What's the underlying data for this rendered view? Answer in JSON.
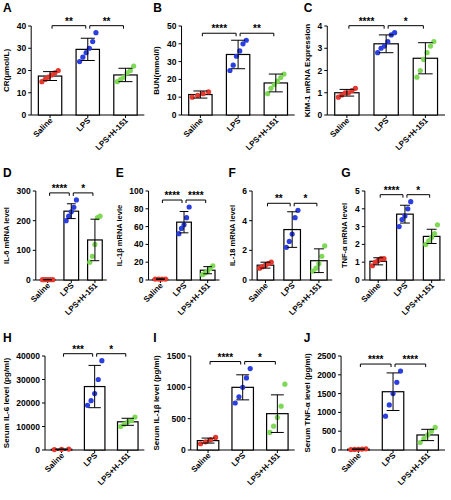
{
  "chart_data": [
    {
      "type": "bar",
      "title": "A",
      "y_label": "CR(μmol/L)",
      "categories": [
        "Saline",
        "LPS",
        "LPS+H-151"
      ],
      "values": [
        17.5,
        29.5,
        18
      ],
      "errors": [
        2,
        5,
        3
      ],
      "points": [
        [
          15,
          16,
          17,
          18,
          19,
          20
        ],
        [
          24,
          26,
          28,
          30,
          33,
          37
        ],
        [
          15,
          16,
          17,
          19,
          20,
          22
        ]
      ],
      "colors": [
        "#e5382e",
        "#2b3fe0",
        "#7fd957"
      ],
      "ylim": [
        0,
        40
      ],
      "yticks": [
        0,
        10,
        20,
        30,
        40
      ],
      "annotations": [
        {
          "text": "**",
          "groups": [
            "Saline",
            "LPS"
          ]
        },
        {
          "text": "**",
          "groups": [
            "LPS",
            "LPS+H-151"
          ]
        }
      ]
    },
    {
      "type": "bar",
      "title": "B",
      "y_label": "BUN(mmol/l)",
      "categories": [
        "Saline",
        "LPS",
        "LPS+H-151"
      ],
      "values": [
        11.5,
        34,
        18
      ],
      "errors": [
        2,
        8,
        5
      ],
      "points": [
        [
          10,
          11,
          12,
          13
        ],
        [
          25,
          28,
          33,
          36,
          40,
          42
        ],
        [
          12,
          15,
          17,
          19,
          21,
          23
        ]
      ],
      "colors": [
        "#e5382e",
        "#2b3fe0",
        "#7fd957"
      ],
      "ylim": [
        0,
        50
      ],
      "yticks": [
        0,
        10,
        20,
        30,
        40,
        50
      ],
      "annotations": [
        {
          "text": "****",
          "groups": [
            "Saline",
            "LPS"
          ]
        },
        {
          "text": "**",
          "groups": [
            "LPS",
            "LPS+H-151"
          ]
        }
      ]
    },
    {
      "type": "bar",
      "title": "C",
      "y_label": "KIM-1 mRNA Expression",
      "categories": [
        "Saline",
        "LPS",
        "LPS+H-151"
      ],
      "values": [
        1.0,
        3.2,
        2.55
      ],
      "errors": [
        0.15,
        0.4,
        0.7
      ],
      "points": [
        [
          0.8,
          0.9,
          1.0,
          1.0,
          1.1,
          1.2
        ],
        [
          2.8,
          3.0,
          3.1,
          3.3,
          3.6,
          3.7
        ],
        [
          1.7,
          2.0,
          2.5,
          2.8,
          3.1,
          3.3
        ]
      ],
      "colors": [
        "#e5382e",
        "#2b3fe0",
        "#7fd957"
      ],
      "ylim": [
        0,
        4
      ],
      "yticks": [
        0,
        1,
        2,
        3,
        4
      ],
      "annotations": [
        {
          "text": "****",
          "groups": [
            "Saline",
            "LPS"
          ]
        },
        {
          "text": "*",
          "groups": [
            "LPS",
            "LPS+H-151"
          ]
        }
      ]
    },
    {
      "type": "bar",
      "title": "D",
      "y_label": "IL-6 mRNA level",
      "categories": [
        "Saline",
        "LPS",
        "LPS+H-151"
      ],
      "values": [
        1,
        232,
        135
      ],
      "errors": [
        0.3,
        25,
        70
      ],
      "points": [
        [
          1,
          1,
          1,
          1,
          1
        ],
        [
          200,
          215,
          230,
          245,
          270
        ],
        [
          60,
          80,
          120,
          210,
          215
        ]
      ],
      "colors": [
        "#e5382e",
        "#2b3fe0",
        "#7fd957"
      ],
      "ylim": [
        0,
        300
      ],
      "yticks": [
        0,
        100,
        200,
        300
      ],
      "annotations": [
        {
          "text": "****",
          "groups": [
            "Saline",
            "LPS"
          ]
        },
        {
          "text": "*",
          "groups": [
            "LPS",
            "LPS+H-151"
          ]
        }
      ]
    },
    {
      "type": "bar",
      "title": "E",
      "y_label": "IL-1β mRNA levle",
      "categories": [
        "Saline",
        "LPS",
        "LPS+H-151"
      ],
      "values": [
        1,
        65,
        11
      ],
      "errors": [
        0.3,
        12,
        4
      ],
      "points": [
        [
          1,
          1,
          1,
          1
        ],
        [
          52,
          58,
          62,
          70,
          82
        ],
        [
          6,
          8,
          10,
          13,
          16
        ]
      ],
      "colors": [
        "#e5382e",
        "#2b3fe0",
        "#7fd957"
      ],
      "ylim": [
        0,
        100
      ],
      "yticks": [
        0,
        20,
        40,
        60,
        80,
        100
      ],
      "annotations": [
        {
          "text": "****",
          "groups": [
            "Saline",
            "LPS"
          ]
        },
        {
          "text": "****",
          "groups": [
            "LPS",
            "LPS+H-151"
          ]
        }
      ]
    },
    {
      "type": "bar",
      "title": "F",
      "y_label": "IL-18 mRNA level",
      "categories": [
        "Saline",
        "LPS",
        "LPS+H-151"
      ],
      "values": [
        1,
        3.4,
        1.3
      ],
      "errors": [
        0.2,
        1.2,
        0.8
      ],
      "points": [
        [
          0.8,
          0.9,
          1,
          1.1,
          1.2
        ],
        [
          2.2,
          2.6,
          3.1,
          4.2,
          4.7
        ],
        [
          0.6,
          0.8,
          1.1,
          1.6,
          2.3
        ]
      ],
      "colors": [
        "#e5382e",
        "#2b3fe0",
        "#7fd957"
      ],
      "ylim": [
        0,
        6
      ],
      "yticks": [
        0,
        2,
        4,
        6
      ],
      "annotations": [
        {
          "text": "**",
          "groups": [
            "Saline",
            "LPS"
          ]
        },
        {
          "text": "*",
          "groups": [
            "LPS",
            "LPS+H-151"
          ]
        }
      ]
    },
    {
      "type": "bar",
      "title": "G",
      "y_label": "TNF-α mRNA level",
      "categories": [
        "Saline",
        "LPS",
        "LPS+H-151"
      ],
      "values": [
        1.05,
        3.7,
        2.45
      ],
      "errors": [
        0.2,
        0.5,
        0.4
      ],
      "points": [
        [
          0.8,
          1.0,
          1.1,
          1.2,
          1.2
        ],
        [
          3.0,
          3.4,
          3.6,
          4.0,
          4.4
        ],
        [
          2.0,
          2.2,
          2.4,
          2.6,
          3.1
        ]
      ],
      "colors": [
        "#e5382e",
        "#2b3fe0",
        "#7fd957"
      ],
      "ylim": [
        0,
        5
      ],
      "yticks": [
        0,
        1,
        2,
        3,
        4,
        5
      ],
      "annotations": [
        {
          "text": "****",
          "groups": [
            "Saline",
            "LPS"
          ]
        },
        {
          "text": "*",
          "groups": [
            "LPS",
            "LPS+H-151"
          ]
        }
      ]
    },
    {
      "type": "bar",
      "title": "H",
      "y_label": "Serum IL-6 level (pg/ml)",
      "categories": [
        "Saline",
        "LPS",
        "LPS+H-151"
      ],
      "values": [
        300,
        27000,
        12000
      ],
      "errors": [
        100,
        9000,
        1500
      ],
      "points": [
        [
          200,
          300,
          400
        ],
        [
          19000,
          21000,
          24000,
          30000,
          38000
        ],
        [
          10000,
          11000,
          12000,
          12500,
          14000
        ]
      ],
      "colors": [
        "#e5382e",
        "#2b3fe0",
        "#7fd957"
      ],
      "ylim": [
        0,
        40000
      ],
      "yticks": [
        0,
        10000,
        20000,
        30000,
        40000
      ],
      "annotations": [
        {
          "text": "***",
          "groups": [
            "Saline",
            "LPS"
          ]
        },
        {
          "text": "*",
          "groups": [
            "LPS",
            "LPS+H-151"
          ]
        }
      ]
    },
    {
      "type": "bar",
      "title": "I",
      "y_label": "Serum IL-1β level (pg/ml)",
      "categories": [
        "Saline",
        "LPS",
        "LPS+H-151"
      ],
      "values": [
        150,
        1000,
        580
      ],
      "errors": [
        40,
        200,
        300
      ],
      "points": [
        [
          100,
          130,
          160,
          200
        ],
        [
          750,
          850,
          1000,
          1150,
          1300
        ],
        [
          280,
          380,
          520,
          700,
          1050
        ]
      ],
      "colors": [
        "#e5382e",
        "#2b3fe0",
        "#7fd957"
      ],
      "ylim": [
        0,
        1500
      ],
      "yticks": [
        0,
        500,
        1000,
        1500
      ],
      "annotations": [
        {
          "text": "****",
          "groups": [
            "Saline",
            "LPS"
          ]
        },
        {
          "text": "*",
          "groups": [
            "LPS",
            "LPS+H-151"
          ]
        }
      ]
    },
    {
      "type": "bar",
      "title": "J",
      "y_label": "Serum TNF-α level (pg/ml)",
      "categories": [
        "Saline",
        "LPS",
        "LPS+H-151"
      ],
      "values": [
        20,
        1550,
        400
      ],
      "errors": [
        8,
        500,
        150
      ],
      "points": [
        [
          10,
          15,
          20,
          25,
          30
        ],
        [
          900,
          1200,
          1500,
          1800,
          2100
        ],
        [
          200,
          300,
          400,
          500,
          600
        ]
      ],
      "colors": [
        "#e5382e",
        "#2b3fe0",
        "#7fd957"
      ],
      "ylim": [
        0,
        2500
      ],
      "yticks": [
        0,
        500,
        1000,
        1500,
        2000,
        2500
      ],
      "annotations": [
        {
          "text": "****",
          "groups": [
            "Saline",
            "LPS"
          ]
        },
        {
          "text": "****",
          "groups": [
            "LPS",
            "LPS+H-151"
          ]
        }
      ]
    }
  ]
}
